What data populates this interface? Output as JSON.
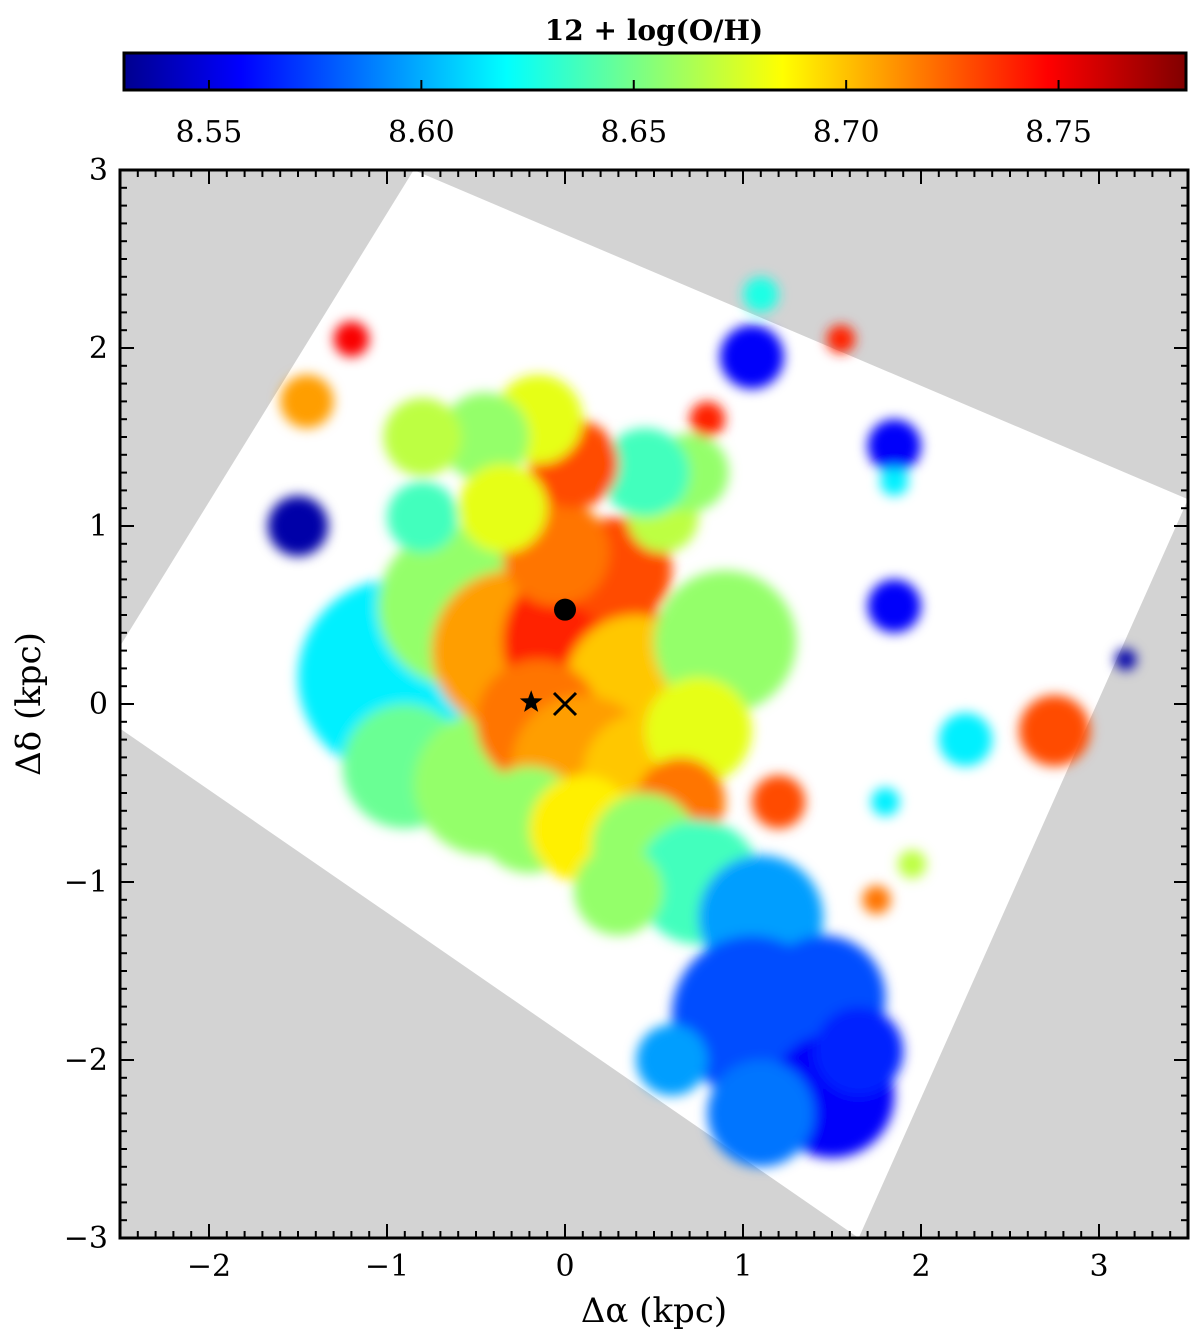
{
  "chart_data": {
    "type": "heatmap",
    "title": "",
    "colorbar": {
      "label": "12 + log(O/H)",
      "range": [
        8.53,
        8.78
      ],
      "ticks": [
        8.55,
        8.6,
        8.65,
        8.7,
        8.75
      ],
      "tick_labels": [
        "8.55",
        "8.60",
        "8.65",
        "8.70",
        "8.75"
      ],
      "colormap": "jet"
    },
    "xlabel": "Δα (kpc)",
    "ylabel": "Δδ (kpc)",
    "xlim": [
      -2.5,
      3.5
    ],
    "ylim": [
      -3.0,
      3.0
    ],
    "xticks": [
      -2,
      -1,
      0,
      1,
      2,
      3
    ],
    "xtick_labels": [
      "−2",
      "−1",
      "0",
      "1",
      "2",
      "3"
    ],
    "yticks": [
      -3,
      -2,
      -1,
      0,
      1,
      2,
      3
    ],
    "ytick_labels": [
      "−3",
      "−2",
      "−1",
      "0",
      "1",
      "2",
      "3"
    ],
    "background_color": "#d3d3d3",
    "field_of_view_color": "#ffffff",
    "field_of_view_corners": [
      [
        -2.7,
        0.0
      ],
      [
        -0.85,
        3.0
      ],
      [
        3.5,
        1.15
      ],
      [
        1.65,
        -3.0
      ]
    ],
    "markers": [
      {
        "symbol": "circle",
        "x": 0.0,
        "y": 0.53
      },
      {
        "symbol": "star",
        "x": -0.19,
        "y": 0.01
      },
      {
        "symbol": "cross",
        "x": 0.0,
        "y": 0.0
      }
    ],
    "regions": [
      {
        "x": -0.95,
        "y": 0.15,
        "r": 0.55,
        "value": 8.62
      },
      {
        "x": -0.6,
        "y": 0.55,
        "r": 0.45,
        "value": 8.66
      },
      {
        "x": -0.9,
        "y": -0.35,
        "r": 0.35,
        "value": 8.65
      },
      {
        "x": -0.45,
        "y": -0.45,
        "r": 0.4,
        "value": 8.66
      },
      {
        "x": -0.3,
        "y": 0.3,
        "r": 0.45,
        "value": 8.71
      },
      {
        "x": 0.1,
        "y": 0.35,
        "r": 0.45,
        "value": 8.74
      },
      {
        "x": 0.3,
        "y": 0.75,
        "r": 0.3,
        "value": 8.73
      },
      {
        "x": -0.05,
        "y": 0.85,
        "r": 0.3,
        "value": 8.72
      },
      {
        "x": 0.4,
        "y": 0.1,
        "r": 0.4,
        "value": 8.7
      },
      {
        "x": -0.15,
        "y": -0.1,
        "r": 0.35,
        "value": 8.72
      },
      {
        "x": 0.1,
        "y": -0.35,
        "r": 0.4,
        "value": 8.71
      },
      {
        "x": 0.45,
        "y": -0.4,
        "r": 0.35,
        "value": 8.7
      },
      {
        "x": 0.9,
        "y": 0.35,
        "r": 0.4,
        "value": 8.66
      },
      {
        "x": 0.75,
        "y": -0.15,
        "r": 0.3,
        "value": 8.68
      },
      {
        "x": 0.65,
        "y": -0.55,
        "r": 0.25,
        "value": 8.72
      },
      {
        "x": -0.2,
        "y": -0.65,
        "r": 0.3,
        "value": 8.66
      },
      {
        "x": 0.1,
        "y": -0.7,
        "r": 0.3,
        "value": 8.69
      },
      {
        "x": 0.45,
        "y": -0.8,
        "r": 0.3,
        "value": 8.66
      },
      {
        "x": 0.75,
        "y": -1.0,
        "r": 0.35,
        "value": 8.64
      },
      {
        "x": 0.3,
        "y": -1.05,
        "r": 0.25,
        "value": 8.66
      },
      {
        "x": 1.1,
        "y": -1.2,
        "r": 0.35,
        "value": 8.6
      },
      {
        "x": 1.05,
        "y": -1.75,
        "r": 0.45,
        "value": 8.58
      },
      {
        "x": 1.45,
        "y": -1.65,
        "r": 0.35,
        "value": 8.58
      },
      {
        "x": 1.5,
        "y": -2.2,
        "r": 0.35,
        "value": 8.56
      },
      {
        "x": 1.1,
        "y": -2.3,
        "r": 0.3,
        "value": 8.59
      },
      {
        "x": 1.65,
        "y": -1.95,
        "r": 0.25,
        "value": 8.57
      },
      {
        "x": 0.6,
        "y": -2.0,
        "r": 0.2,
        "value": 8.6
      },
      {
        "x": 0.55,
        "y": 1.05,
        "r": 0.2,
        "value": 8.67
      },
      {
        "x": 0.7,
        "y": 1.3,
        "r": 0.22,
        "value": 8.66
      },
      {
        "x": 0.45,
        "y": 1.3,
        "r": 0.25,
        "value": 8.64
      },
      {
        "x": 0.05,
        "y": 1.35,
        "r": 0.25,
        "value": 8.73
      },
      {
        "x": -0.15,
        "y": 1.6,
        "r": 0.25,
        "value": 8.68
      },
      {
        "x": -0.45,
        "y": 1.5,
        "r": 0.25,
        "value": 8.66
      },
      {
        "x": -0.8,
        "y": 1.5,
        "r": 0.22,
        "value": 8.67
      },
      {
        "x": -0.35,
        "y": 1.1,
        "r": 0.25,
        "value": 8.68
      },
      {
        "x": -0.8,
        "y": 1.05,
        "r": 0.2,
        "value": 8.64
      },
      {
        "x": -1.45,
        "y": 1.7,
        "r": 0.15,
        "value": 8.71
      },
      {
        "x": -1.2,
        "y": 2.05,
        "r": 0.1,
        "value": 8.75
      },
      {
        "x": -1.5,
        "y": 1.0,
        "r": 0.17,
        "value": 8.54
      },
      {
        "x": 1.05,
        "y": 1.95,
        "r": 0.18,
        "value": 8.56
      },
      {
        "x": 1.1,
        "y": 2.3,
        "r": 0.1,
        "value": 8.63
      },
      {
        "x": 1.55,
        "y": 2.05,
        "r": 0.08,
        "value": 8.74
      },
      {
        "x": 1.85,
        "y": 1.45,
        "r": 0.15,
        "value": 8.56
      },
      {
        "x": 1.85,
        "y": 0.55,
        "r": 0.15,
        "value": 8.56
      },
      {
        "x": 1.8,
        "y": -0.55,
        "r": 0.08,
        "value": 8.62
      },
      {
        "x": 2.75,
        "y": -0.15,
        "r": 0.2,
        "value": 8.73
      },
      {
        "x": 2.25,
        "y": -0.2,
        "r": 0.15,
        "value": 8.62
      },
      {
        "x": 3.15,
        "y": 0.25,
        "r": 0.06,
        "value": 8.54
      },
      {
        "x": 0.8,
        "y": 1.6,
        "r": 0.1,
        "value": 8.74
      },
      {
        "x": 1.75,
        "y": -1.1,
        "r": 0.08,
        "value": 8.72
      },
      {
        "x": 1.95,
        "y": -0.9,
        "r": 0.08,
        "value": 8.67
      },
      {
        "x": 1.2,
        "y": -0.55,
        "r": 0.15,
        "value": 8.73
      },
      {
        "x": 1.85,
        "y": 1.25,
        "r": 0.08,
        "value": 8.62
      }
    ]
  }
}
